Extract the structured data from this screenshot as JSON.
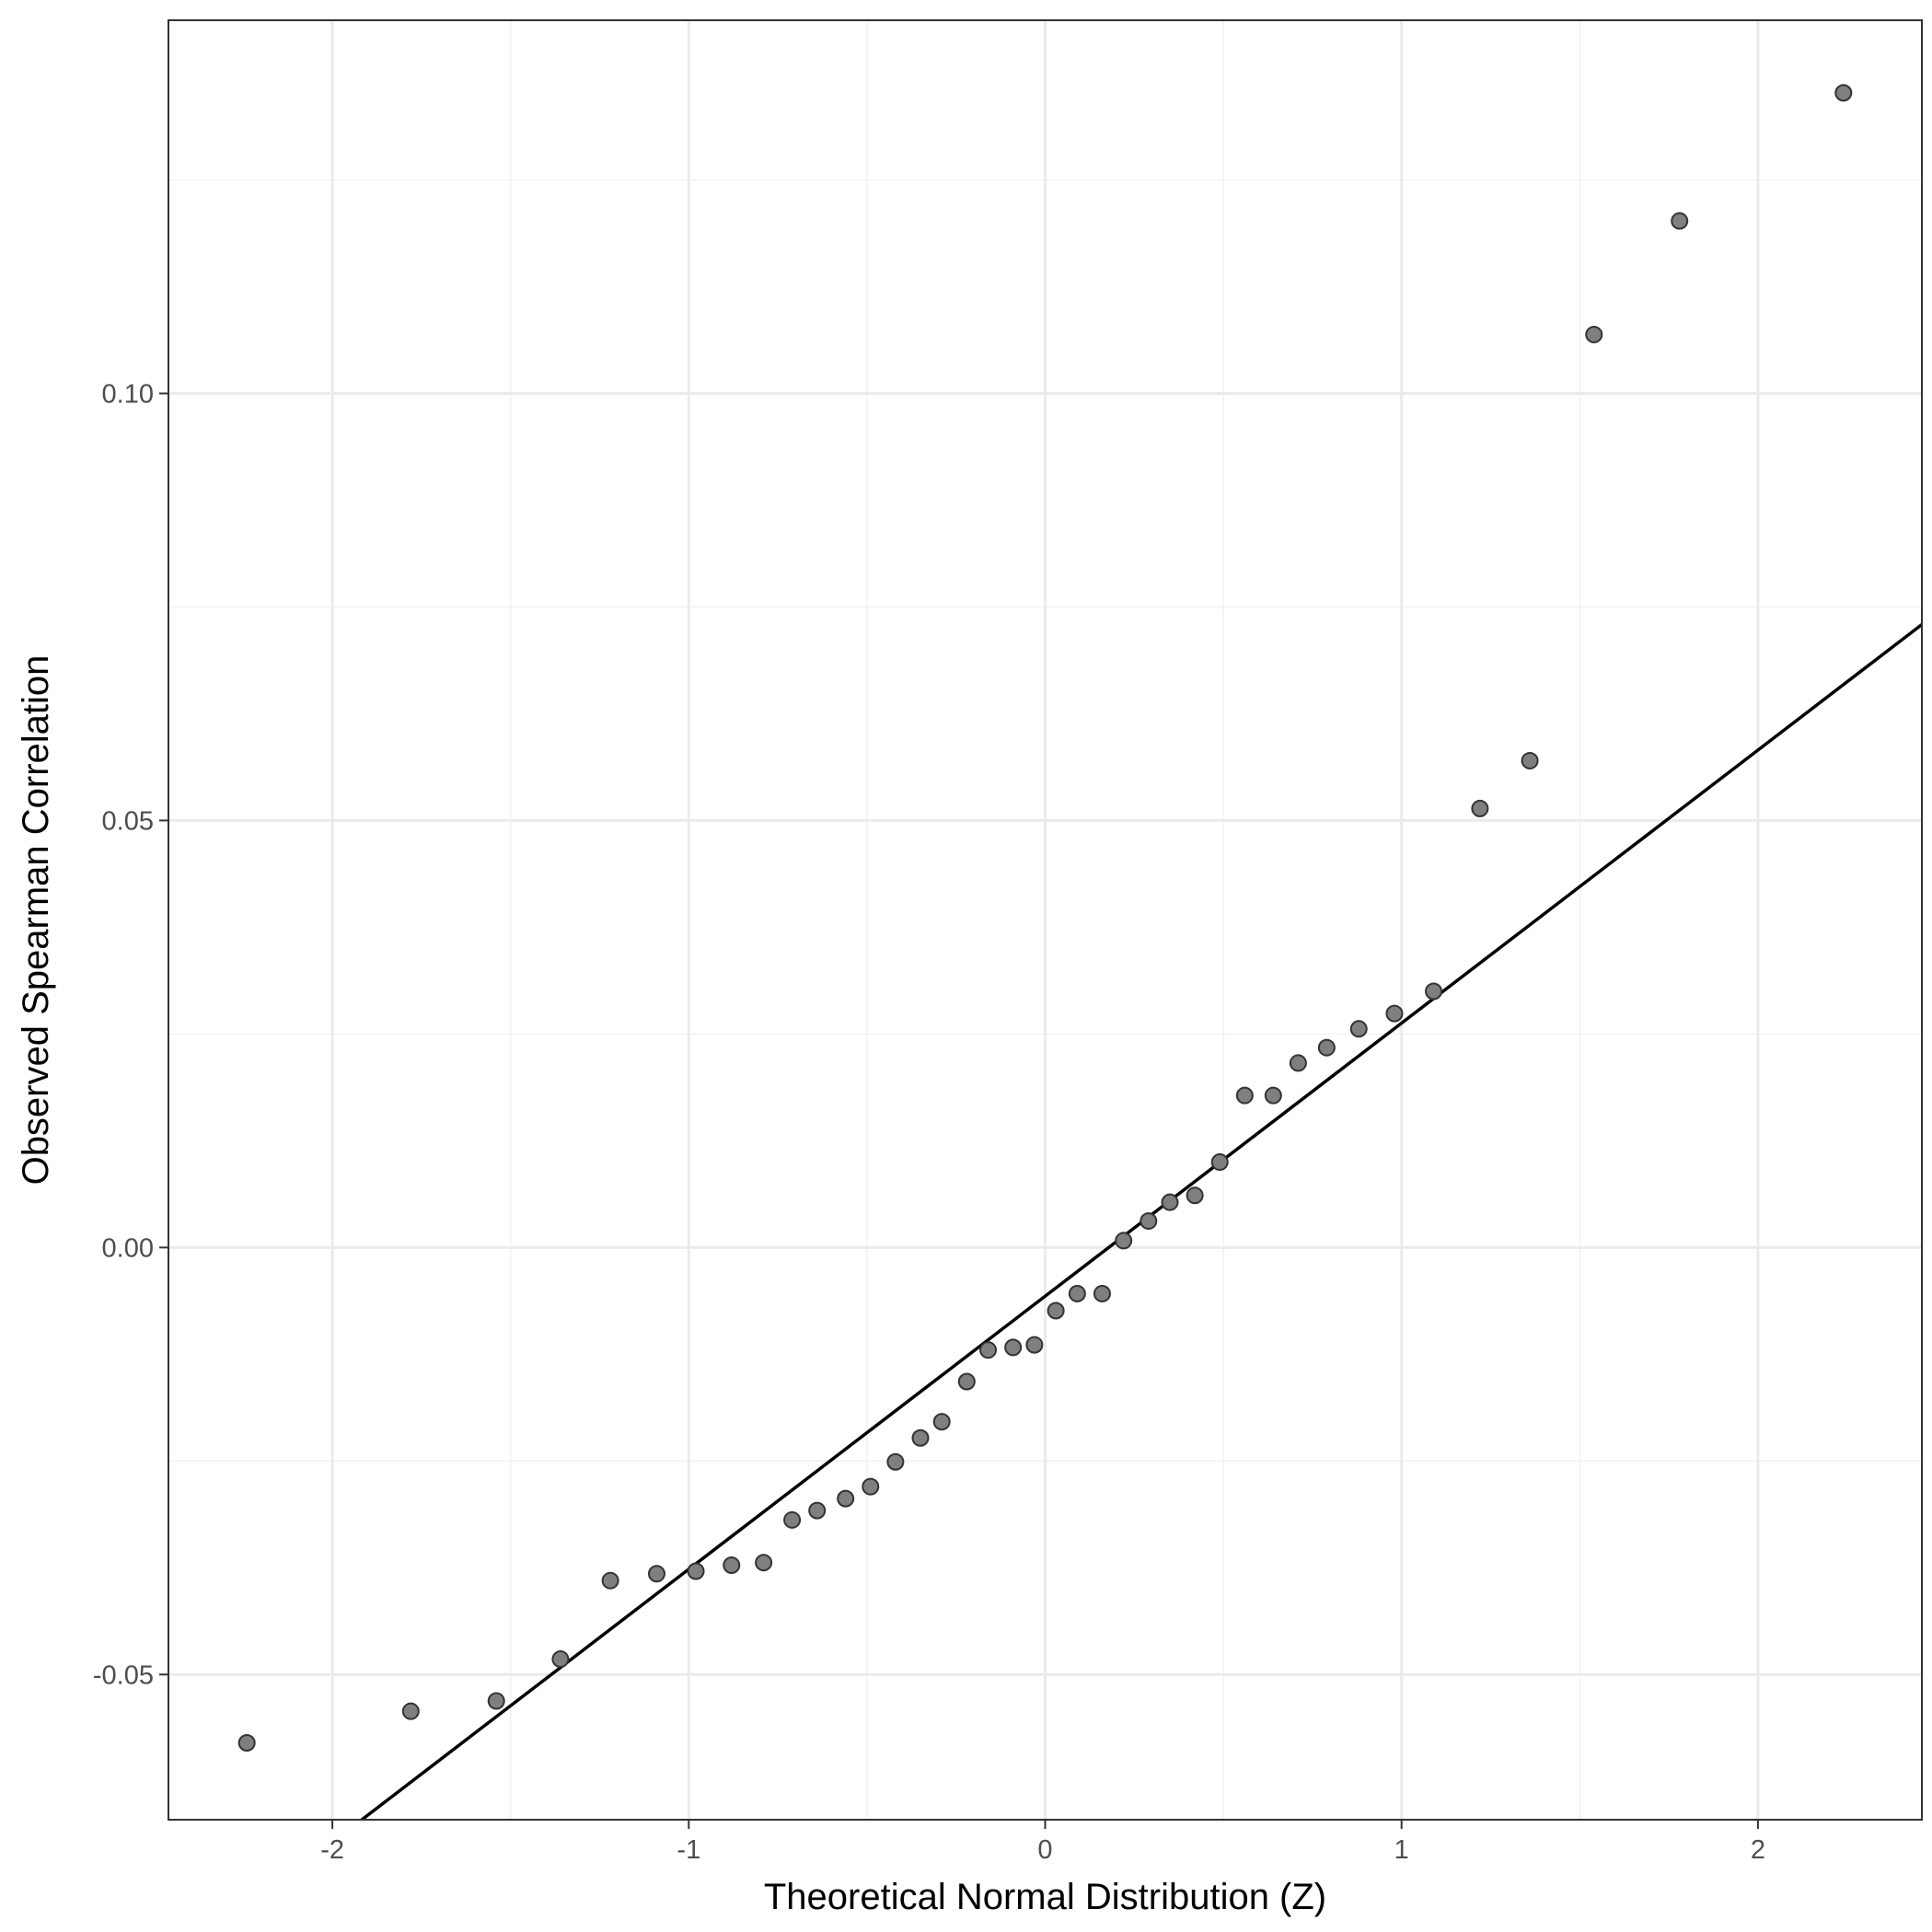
{
  "chart_data": {
    "type": "scatter",
    "title": "",
    "xlabel": "Theoretical Normal Distribution (Z)",
    "ylabel": "Observed Spearman Correlation",
    "xlim": [
      -2.46,
      2.46
    ],
    "ylim": [
      -0.067,
      0.1437
    ],
    "x_ticks": [
      -2,
      -1,
      0,
      1,
      2
    ],
    "x_tick_labels": [
      "-2",
      "-1",
      "0",
      "1",
      "2"
    ],
    "y_ticks": [
      -0.05,
      0.0,
      0.05,
      0.1
    ],
    "y_tick_labels": [
      "-0.05",
      "0.00",
      "0.05",
      "0.10"
    ],
    "grid": true,
    "legend": "none",
    "colors": {
      "point_fill": "#7f7f7f",
      "point_stroke": "#333333",
      "reference_line": "#000000",
      "grid_major": "#ebebeb",
      "grid_minor": "#f2f2f2",
      "panel_border": "#333333"
    },
    "points": [
      {
        "x": -2.24,
        "y": -0.058
      },
      {
        "x": -1.78,
        "y": -0.0543
      },
      {
        "x": -1.54,
        "y": -0.0531
      },
      {
        "x": -1.36,
        "y": -0.0482
      },
      {
        "x": -1.22,
        "y": -0.039
      },
      {
        "x": -1.09,
        "y": -0.0382
      },
      {
        "x": -0.98,
        "y": -0.0379
      },
      {
        "x": -0.88,
        "y": -0.0372
      },
      {
        "x": -0.79,
        "y": -0.0369
      },
      {
        "x": -0.71,
        "y": -0.0319
      },
      {
        "x": -0.64,
        "y": -0.0308
      },
      {
        "x": -0.56,
        "y": -0.0294
      },
      {
        "x": -0.49,
        "y": -0.028
      },
      {
        "x": -0.42,
        "y": -0.0251
      },
      {
        "x": -0.35,
        "y": -0.0223
      },
      {
        "x": -0.29,
        "y": -0.0204
      },
      {
        "x": -0.22,
        "y": -0.0157
      },
      {
        "x": -0.16,
        "y": -0.012
      },
      {
        "x": -0.09,
        "y": -0.0117
      },
      {
        "x": -0.03,
        "y": -0.0114
      },
      {
        "x": 0.03,
        "y": -0.0074
      },
      {
        "x": 0.09,
        "y": -0.0054
      },
      {
        "x": 0.16,
        "y": -0.0054
      },
      {
        "x": 0.22,
        "y": 0.0008
      },
      {
        "x": 0.29,
        "y": 0.0031
      },
      {
        "x": 0.35,
        "y": 0.0053
      },
      {
        "x": 0.42,
        "y": 0.0061
      },
      {
        "x": 0.49,
        "y": 0.01
      },
      {
        "x": 0.56,
        "y": 0.0178
      },
      {
        "x": 0.64,
        "y": 0.0178
      },
      {
        "x": 0.71,
        "y": 0.0216
      },
      {
        "x": 0.79,
        "y": 0.0234
      },
      {
        "x": 0.88,
        "y": 0.0256
      },
      {
        "x": 0.98,
        "y": 0.0274
      },
      {
        "x": 1.09,
        "y": 0.03
      },
      {
        "x": 1.22,
        "y": 0.0514
      },
      {
        "x": 1.36,
        "y": 0.057
      },
      {
        "x": 1.54,
        "y": 0.1069
      },
      {
        "x": 1.78,
        "y": 0.1202
      },
      {
        "x": 2.24,
        "y": 0.1352
      }
    ],
    "reference_line": {
      "slope": 0.03197,
      "intercept": -0.0057
    }
  }
}
